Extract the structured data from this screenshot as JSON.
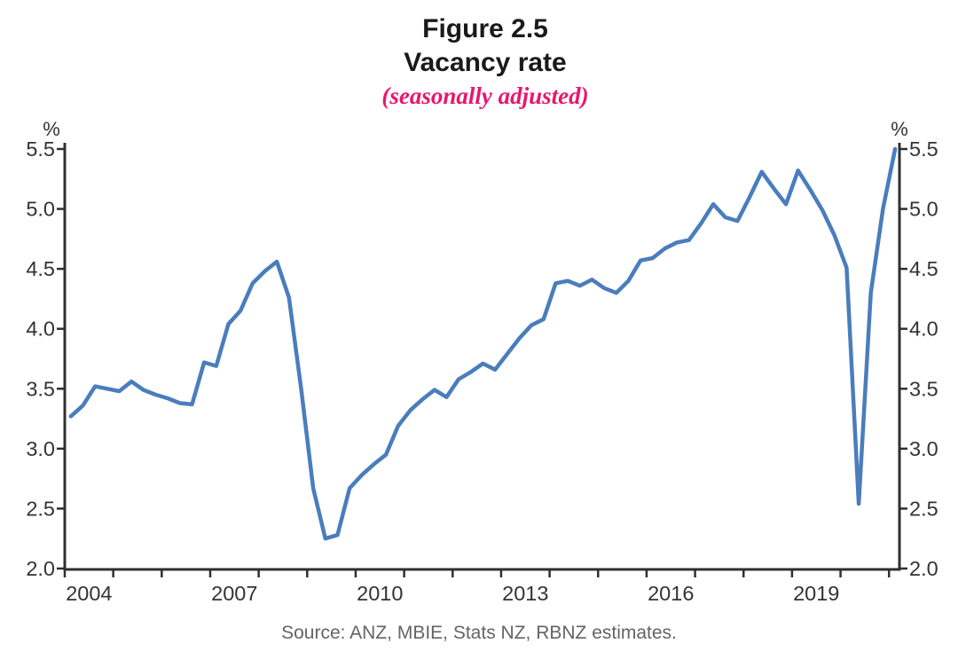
{
  "figure": {
    "number": "Figure 2.5",
    "title": "Vacancy rate",
    "subtitle": "(seasonally adjusted)",
    "source": "Source: ANZ, MBIE, Stats NZ, RBNZ estimates."
  },
  "colors": {
    "line_blue": "#4a7dbc",
    "subtitle_pink": "#e8176d",
    "axis": "#2f2f2f",
    "tick_label": "#333333",
    "source_gray": "#646464"
  },
  "chart_data": {
    "type": "line",
    "title": "Figure 2.5",
    "subtitle": "Vacancy rate (seasonally adjusted)",
    "unit": "%",
    "ylabel": "%",
    "xlabel": "",
    "ylim": [
      2.0,
      5.5
    ],
    "grid": false,
    "legend_position": "none",
    "y_tick_labels": [
      "2.0",
      "2.5",
      "3.0",
      "3.5",
      "4.0",
      "4.5",
      "5.0",
      "5.5"
    ],
    "x_year_ticks": [
      2004,
      2005,
      2006,
      2007,
      2008,
      2009,
      2010,
      2011,
      2012,
      2013,
      2014,
      2015,
      2016,
      2017,
      2018,
      2019,
      2020,
      2021
    ],
    "x_year_labels": [
      "2004",
      "2007",
      "2010",
      "2013",
      "2016",
      "2019"
    ],
    "series": [
      {
        "name": "Vacancy rate (seasonally adjusted)",
        "frequency": "quarterly",
        "quarters": [
          "2004Q1",
          "2004Q2",
          "2004Q3",
          "2004Q4",
          "2005Q1",
          "2005Q2",
          "2005Q3",
          "2005Q4",
          "2006Q1",
          "2006Q2",
          "2006Q3",
          "2006Q4",
          "2007Q1",
          "2007Q2",
          "2007Q3",
          "2007Q4",
          "2008Q1",
          "2008Q2",
          "2008Q3",
          "2008Q4",
          "2009Q1",
          "2009Q2",
          "2009Q3",
          "2009Q4",
          "2010Q1",
          "2010Q2",
          "2010Q3",
          "2010Q4",
          "2011Q1",
          "2011Q2",
          "2011Q3",
          "2011Q4",
          "2012Q1",
          "2012Q2",
          "2012Q3",
          "2012Q4",
          "2013Q1",
          "2013Q2",
          "2013Q3",
          "2013Q4",
          "2014Q1",
          "2014Q2",
          "2014Q3",
          "2014Q4",
          "2015Q1",
          "2015Q2",
          "2015Q3",
          "2015Q4",
          "2016Q1",
          "2016Q2",
          "2016Q3",
          "2016Q4",
          "2017Q1",
          "2017Q2",
          "2017Q3",
          "2017Q4",
          "2018Q1",
          "2018Q2",
          "2018Q3",
          "2018Q4",
          "2019Q1",
          "2019Q2",
          "2019Q3",
          "2019Q4",
          "2020Q1",
          "2020Q2",
          "2020Q3",
          "2020Q4",
          "2021Q1"
        ],
        "values": [
          3.27,
          3.36,
          3.52,
          3.5,
          3.48,
          3.56,
          3.49,
          3.45,
          3.42,
          3.38,
          3.37,
          3.72,
          3.69,
          4.04,
          4.15,
          4.38,
          4.48,
          4.56,
          4.26,
          3.5,
          2.67,
          2.25,
          2.28,
          2.67,
          2.78,
          2.87,
          2.95,
          3.19,
          3.32,
          3.41,
          3.49,
          3.43,
          3.58,
          3.64,
          3.71,
          3.66,
          3.79,
          3.92,
          4.03,
          4.08,
          4.38,
          4.4,
          4.36,
          4.41,
          4.34,
          4.3,
          4.4,
          4.57,
          4.59,
          4.67,
          4.72,
          4.74,
          4.88,
          5.04,
          4.93,
          4.9,
          5.1,
          5.31,
          5.17,
          5.04,
          5.32,
          5.16,
          4.99,
          4.78,
          4.51,
          2.54,
          4.3,
          5.0,
          5.5
        ]
      }
    ]
  }
}
